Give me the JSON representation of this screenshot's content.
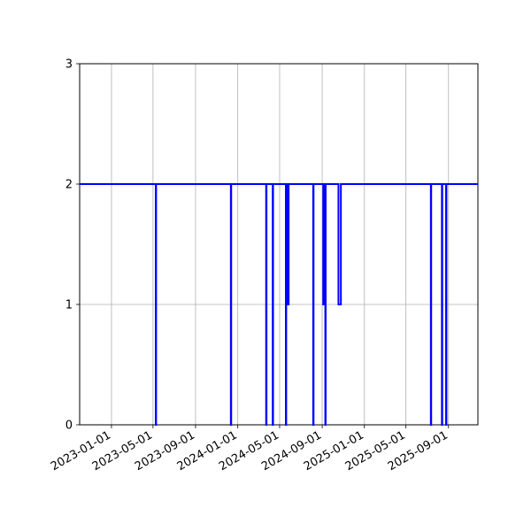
{
  "chart_data": {
    "type": "line",
    "title": "",
    "xlabel": "",
    "ylabel": "",
    "x_axis": "date",
    "xlim": [
      "2022-10-01",
      "2025-11-25"
    ],
    "ylim": [
      0,
      3
    ],
    "grid": true,
    "legend": "none",
    "line_color": "#0000ff",
    "x_ticks": [
      "2023-01-01",
      "2023-05-01",
      "2023-09-01",
      "2024-01-01",
      "2024-05-01",
      "2024-09-01",
      "2025-01-01",
      "2025-05-01",
      "2025-09-01"
    ],
    "y_ticks": [
      0,
      1,
      2,
      3
    ],
    "x_tick_labels": [
      "2023-01-01",
      "2023-05-01",
      "2023-09-01",
      "2024-01-01",
      "2024-05-01",
      "2024-09-01",
      "2025-01-01",
      "2025-05-01",
      "2025-09-01"
    ],
    "y_tick_labels": [
      "0",
      "1",
      "2",
      "3"
    ],
    "series": [
      {
        "x": [
          "2022-10-01",
          "2023-05-09",
          "2023-05-09",
          "2023-05-10",
          "2023-05-10",
          "2023-12-12",
          "2023-12-12",
          "2023-12-13",
          "2023-12-13",
          "2024-03-23",
          "2024-03-23",
          "2024-03-24",
          "2024-03-24",
          "2024-04-11",
          "2024-04-11",
          "2024-04-12",
          "2024-04-12",
          "2024-05-19",
          "2024-05-19",
          "2024-05-20",
          "2024-05-20",
          "2024-05-25",
          "2024-05-25",
          "2024-05-27",
          "2024-05-27",
          "2024-08-06",
          "2024-08-06",
          "2024-08-07",
          "2024-08-07",
          "2024-09-04",
          "2024-09-04",
          "2024-09-05",
          "2024-09-05",
          "2024-09-10",
          "2024-09-10",
          "2024-09-11",
          "2024-09-11",
          "2024-10-18",
          "2024-10-18",
          "2024-10-25",
          "2024-10-25",
          "2025-07-12",
          "2025-07-12",
          "2025-07-13",
          "2025-07-13",
          "2025-08-13",
          "2025-08-13",
          "2025-08-14",
          "2025-08-14",
          "2025-08-25",
          "2025-08-25",
          "2025-08-26",
          "2025-08-26",
          "2025-11-25"
        ],
        "y": [
          2,
          2,
          0,
          0,
          2,
          2,
          0,
          0,
          2,
          2,
          0,
          0,
          2,
          2,
          0,
          0,
          2,
          2,
          0,
          0,
          2,
          2,
          1,
          1,
          2,
          2,
          0,
          0,
          2,
          2,
          1,
          1,
          2,
          2,
          0,
          0,
          2,
          2,
          1,
          1,
          2,
          2,
          0,
          0,
          2,
          2,
          0,
          0,
          2,
          2,
          0,
          0,
          2,
          2
        ]
      }
    ]
  }
}
